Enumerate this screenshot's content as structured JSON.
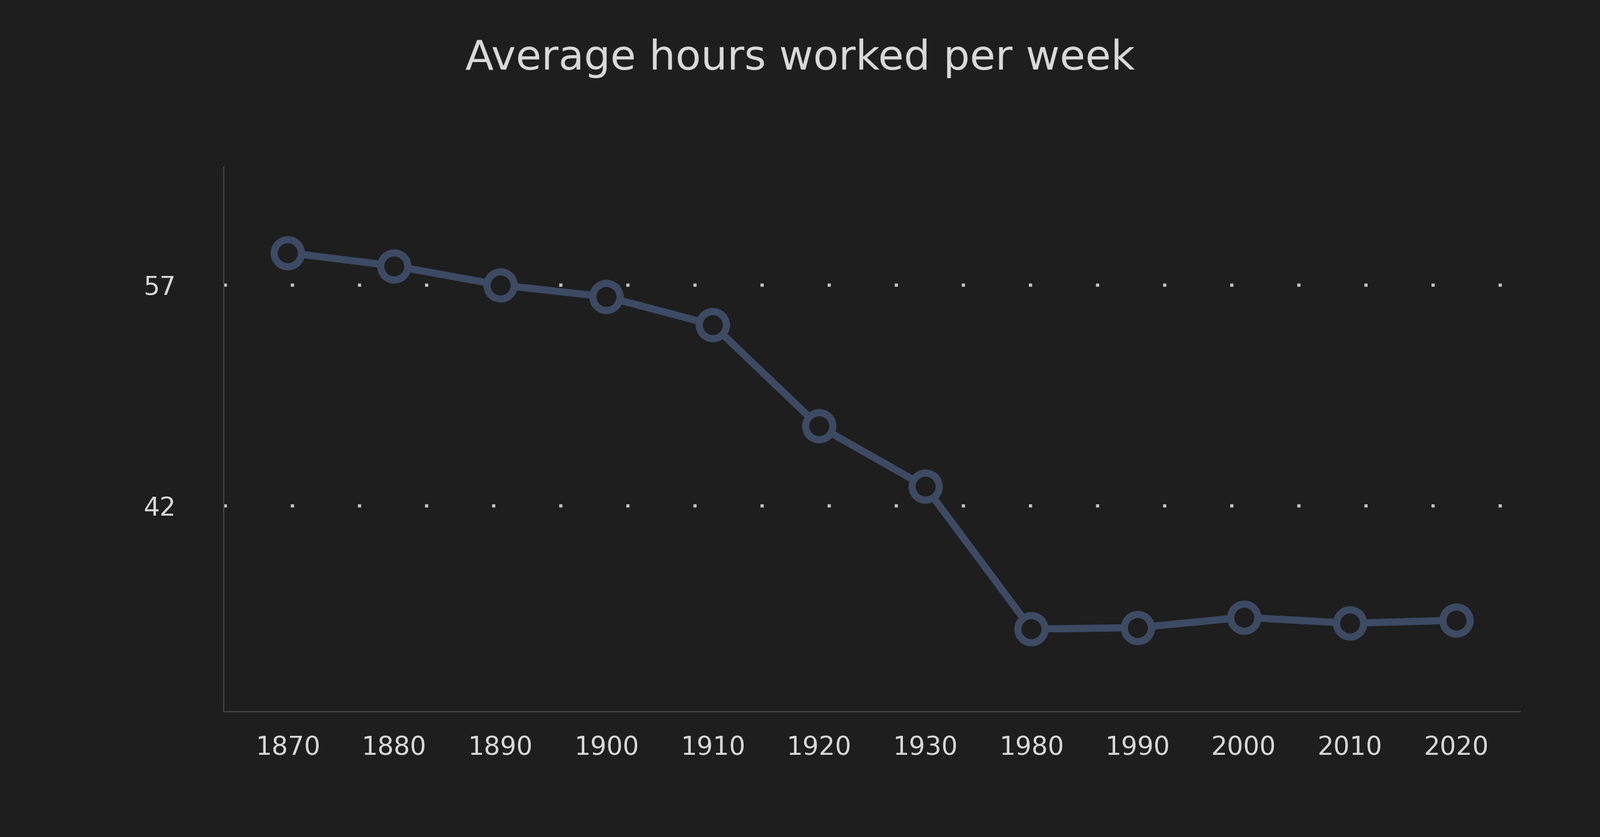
{
  "chart_data": {
    "type": "line",
    "title": "Average hours worked per week",
    "categories": [
      "1870",
      "1880",
      "1890",
      "1900",
      "1910",
      "1920",
      "1930",
      "1980",
      "1990",
      "2000",
      "2010",
      "2020"
    ],
    "values": [
      59.2,
      58.3,
      57.0,
      56.2,
      54.3,
      47.4,
      43.3,
      33.6,
      33.7,
      34.4,
      34.0,
      34.2
    ],
    "color": "#3d4a63",
    "marker": "o",
    "line_style": "solid",
    "ylim": [
      28,
      65
    ],
    "yticks": [
      42,
      57
    ],
    "grid": true
  }
}
